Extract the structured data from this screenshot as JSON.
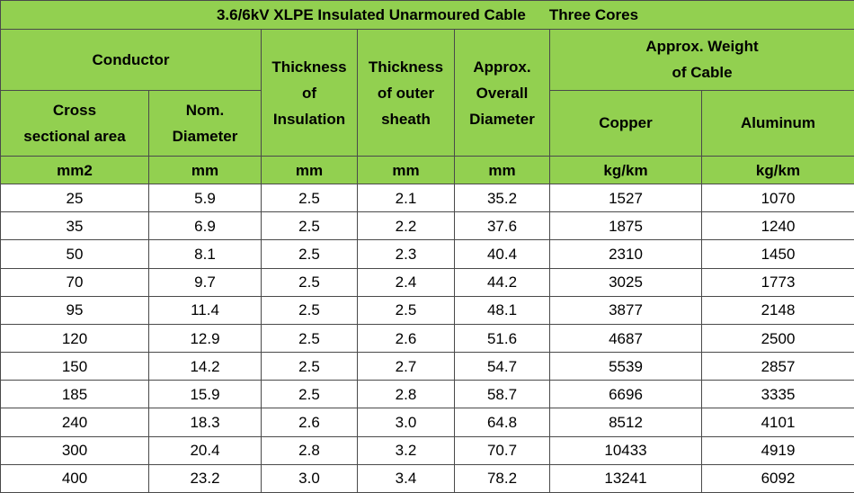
{
  "title": "3.6/6kV XLPE Insulated Unarmoured Cable",
  "title_suffix": "Three Cores",
  "headers": {
    "conductor": "Conductor",
    "cross_line1": "Cross",
    "cross_line2": "sectional area",
    "nom_line1": "Nom.",
    "nom_line2": "Diameter",
    "thick_ins_line1": "Thickness",
    "thick_ins_line2": "of",
    "thick_ins_line3": "Insulation",
    "thick_sheath_line1": "Thickness",
    "thick_sheath_line2": "of outer",
    "thick_sheath_line3": "sheath",
    "overall_line1": "Approx.",
    "overall_line2": "Overall",
    "overall_line3": "Diameter",
    "weight_line1": "Approx. Weight",
    "weight_line2": "of Cable",
    "copper": "Copper",
    "aluminum": "Aluminum"
  },
  "units": [
    "mm2",
    "mm",
    "mm",
    "mm",
    "mm",
    "kg/km",
    "kg/km"
  ],
  "rows": [
    [
      "25",
      "5.9",
      "2.5",
      "2.1",
      "35.2",
      "1527",
      "1070"
    ],
    [
      "35",
      "6.9",
      "2.5",
      "2.2",
      "37.6",
      "1875",
      "1240"
    ],
    [
      "50",
      "8.1",
      "2.5",
      "2.3",
      "40.4",
      "2310",
      "1450"
    ],
    [
      "70",
      "9.7",
      "2.5",
      "2.4",
      "44.2",
      "3025",
      "1773"
    ],
    [
      "95",
      "11.4",
      "2.5",
      "2.5",
      "48.1",
      "3877",
      "2148"
    ],
    [
      "120",
      "12.9",
      "2.5",
      "2.6",
      "51.6",
      "4687",
      "2500"
    ],
    [
      "150",
      "14.2",
      "2.5",
      "2.7",
      "54.7",
      "5539",
      "2857"
    ],
    [
      "185",
      "15.9",
      "2.5",
      "2.8",
      "58.7",
      "6696",
      "3335"
    ],
    [
      "240",
      "18.3",
      "2.6",
      "3.0",
      "64.8",
      "8512",
      "4101"
    ],
    [
      "300",
      "20.4",
      "2.8",
      "3.2",
      "70.7",
      "10433",
      "4919"
    ],
    [
      "400",
      "23.2",
      "3.0",
      "3.4",
      "78.2",
      "13241",
      "6092"
    ]
  ],
  "colors": {
    "header_bg": "#92d050",
    "border": "#4a4a4a",
    "body_bg": "#ffffff"
  }
}
